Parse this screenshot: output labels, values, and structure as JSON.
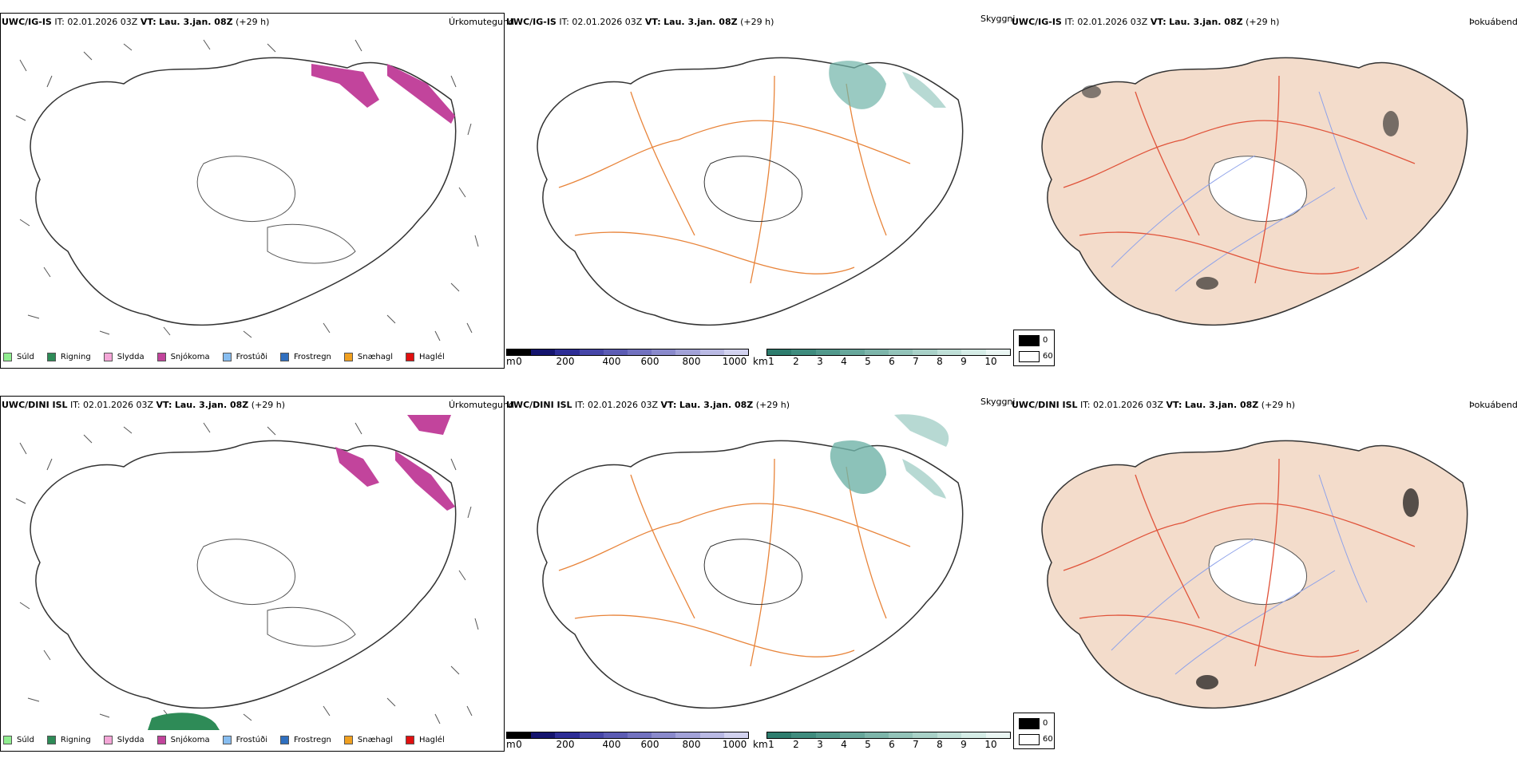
{
  "rows": [
    {
      "precip": {
        "model": "UWC/IG-IS",
        "it_label": "IT:",
        "it": "02.01.2026 03Z",
        "vt_label": "VT:",
        "vt": "Lau. 3.jan. 08Z",
        "lead": "(+29 h)",
        "type": "Úrkomutegund"
      },
      "vis": {
        "model": "UWC/IG-IS",
        "it_label": "IT:",
        "it": "02.01.2026 03Z",
        "vt_label": "VT:",
        "vt": "Lau. 3.jan. 08Z",
        "lead": "(+29 h)",
        "type": "Skyggni"
      },
      "cloud": {
        "model": "UWC/IG-IS",
        "it_label": "IT:",
        "it": "02.01.2026 03Z",
        "vt_label": "VT:",
        "vt": "Lau. 3.jan. 08Z",
        "lead": "(+29 h)",
        "type": "Þokuábendi"
      }
    },
    {
      "precip": {
        "model": "UWC/DINI ISL",
        "it_label": "IT:",
        "it": "02.01.2026 03Z",
        "vt_label": "VT:",
        "vt": "Lau. 3.jan. 08Z",
        "lead": "(+29 h)",
        "type": "Úrkomutegund"
      },
      "vis": {
        "model": "UWC/DINI ISL",
        "it_label": "IT:",
        "it": "02.01.2026 03Z",
        "vt_label": "VT:",
        "vt": "Lau. 3.jan. 08Z",
        "lead": "(+29 h)",
        "type": "Skyggni"
      },
      "cloud": {
        "model": "UWC/DINI ISL",
        "it_label": "IT:",
        "it": "02.01.2026 03Z",
        "vt_label": "VT:",
        "vt": "Lau. 3.jan. 08Z",
        "lead": "(+29 h)",
        "type": "Þokuábendi"
      }
    }
  ],
  "precip_legend": [
    {
      "label": "Súld",
      "color": "#90ee90"
    },
    {
      "label": "Rigning",
      "color": "#2e8b57"
    },
    {
      "label": "Slydda",
      "color": "#f4a6d7"
    },
    {
      "label": "Snjókoma",
      "color": "#c2449c"
    },
    {
      "label": "Frostúði",
      "color": "#87bdf0"
    },
    {
      "label": "Frostregn",
      "color": "#2f6fbf"
    },
    {
      "label": "Snæhagl",
      "color": "#f0a020"
    },
    {
      "label": "Haglél",
      "color": "#e01010"
    }
  ],
  "cloudbase": {
    "unit": "m",
    "ticks": [
      "0",
      "200",
      "400",
      "600",
      "800",
      "1000"
    ],
    "colors": [
      "#000000",
      "#14146e",
      "#2d2d96",
      "#4646a8",
      "#5c5cb4",
      "#7272c0",
      "#8a8acc",
      "#a2a2d8",
      "#babae4",
      "#d2d2ef"
    ]
  },
  "visibility": {
    "unit": "km",
    "ticks": [
      "1",
      "2",
      "3",
      "4",
      "5",
      "6",
      "7",
      "8",
      "9",
      "10"
    ],
    "colors": [
      "#2e7d6e",
      "#3f8c7e",
      "#52998c",
      "#67a79b",
      "#7db5aa",
      "#93c3b9",
      "#a9d1c8",
      "#bfdfd7",
      "#d5ece6",
      "#eaf6f3"
    ]
  },
  "fog": {
    "high": "0",
    "low": "60"
  },
  "colors": {
    "snow": "#c2449c",
    "rain": "#2e8b57",
    "visibility_shade": "#6fb3a8",
    "roads": "#e8843a",
    "cloud_land": "#f3dccb",
    "cloud_roads": "#e0533a",
    "rivers": "#8ea2ea"
  }
}
